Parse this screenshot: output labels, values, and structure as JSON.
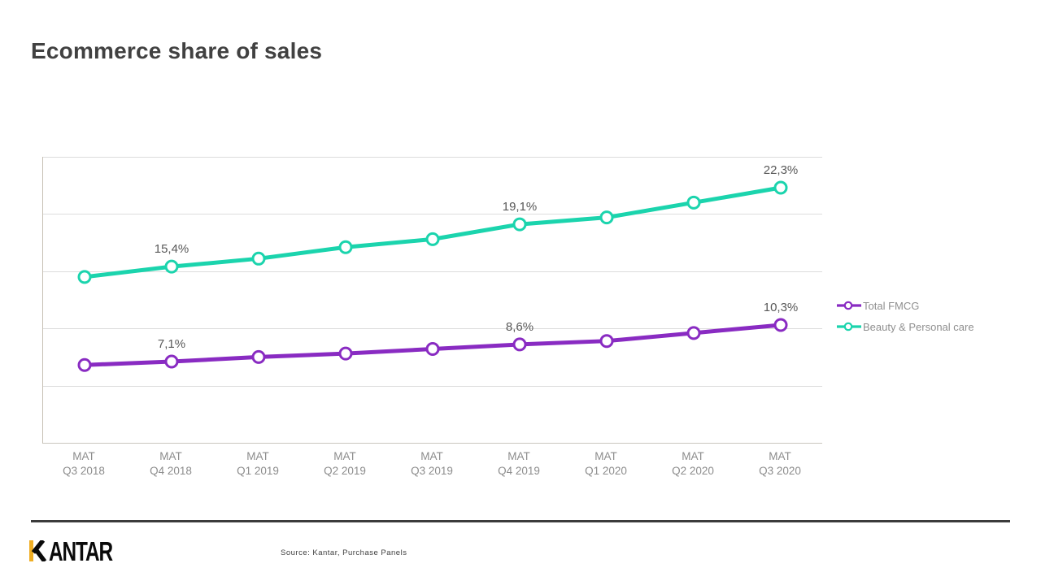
{
  "header": {
    "title": "Ecommerce share of sales"
  },
  "chart_data": {
    "type": "line",
    "title": "Ecommerce share of sales",
    "x_labels": [
      [
        "MAT",
        "Q3 2018"
      ],
      [
        "MAT",
        "Q4 2018"
      ],
      [
        "MAT",
        "Q1 2019"
      ],
      [
        "MAT",
        "Q2 2019"
      ],
      [
        "MAT",
        "Q3 2019"
      ],
      [
        "MAT",
        "Q4 2019"
      ],
      [
        "MAT",
        "Q1 2020"
      ],
      [
        "MAT",
        "Q2 2020"
      ],
      [
        "MAT",
        "Q3 2020"
      ]
    ],
    "y_axis": {
      "min": 0,
      "max": 25,
      "step": 5,
      "labels_visible": false
    },
    "grid": true,
    "legend_position": "right",
    "series": [
      {
        "name": "Total FMCG",
        "color": "#892bc2",
        "values": [
          6.8,
          7.1,
          7.5,
          7.8,
          8.2,
          8.6,
          8.9,
          9.6,
          10.3
        ],
        "point_labels": {
          "1": "7,1%",
          "5": "8,6%",
          "8": "10,3%"
        }
      },
      {
        "name": "Beauty & Personal care",
        "color": "#1bd4ad",
        "values": [
          14.5,
          15.4,
          16.1,
          17.1,
          17.8,
          19.1,
          19.7,
          21.0,
          22.3
        ],
        "point_labels": {
          "1": "15,4%",
          "5": "19,1%",
          "8": "22,3%"
        }
      }
    ]
  },
  "footer": {
    "logo_text": "KANTAR",
    "logo_accent_color": "#efae24",
    "source_note": "Source: Kantar, Purchase Panels"
  }
}
